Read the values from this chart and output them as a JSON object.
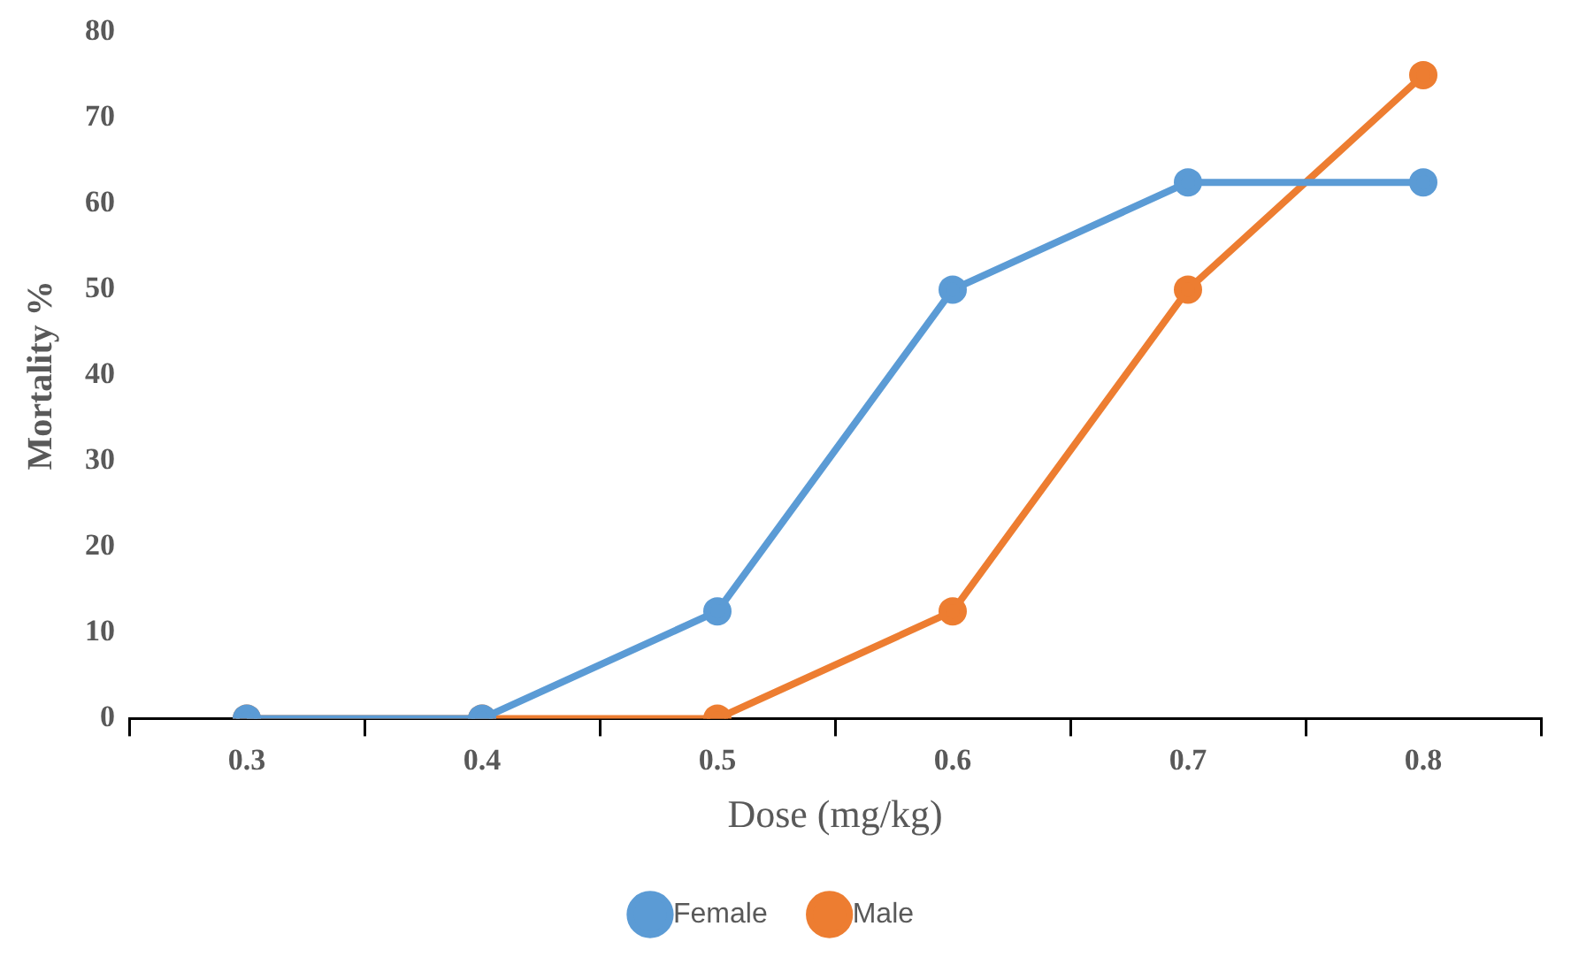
{
  "chart_data": {
    "type": "line",
    "xlabel": "Dose (mg/kg)",
    "ylabel": "Mortality %",
    "categories": [
      "0.3",
      "0.4",
      "0.5",
      "0.6",
      "0.7",
      "0.8"
    ],
    "series": [
      {
        "name": "Female",
        "color": "#5b9bd5",
        "values": [
          0,
          0,
          12.5,
          50,
          62.5,
          62.5
        ]
      },
      {
        "name": "Male",
        "color": "#ed7d31",
        "values": [
          0,
          0,
          0,
          12.5,
          50,
          75
        ]
      }
    ],
    "ylim": [
      0,
      80
    ],
    "yticks": [
      0,
      10,
      20,
      30,
      40,
      50,
      60,
      70,
      80
    ],
    "grid": false,
    "legend": "bottom",
    "marker": "circle",
    "line_style": "solid"
  }
}
